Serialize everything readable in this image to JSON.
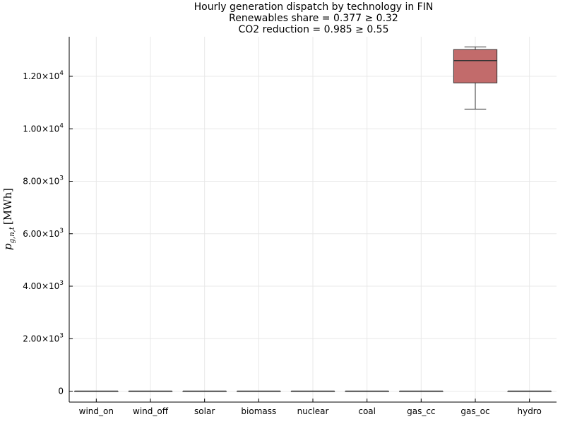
{
  "chart_data": {
    "type": "box",
    "title_lines": [
      "Hourly generation dispatch by technology in FIN",
      "Renewables share = 0.377 ≥ 0.32",
      "CO2 reduction = 0.985 ≥ 0.55"
    ],
    "ylabel": "p_{g,n,t} [MWh]",
    "ylabel_parts": {
      "p": "p",
      "sub": "g,n,t",
      "unit": "[MWh]"
    },
    "ylim": [
      -400,
      13500
    ],
    "yticks": [
      {
        "value": 0,
        "mant": "0",
        "exp": ""
      },
      {
        "value": 2000,
        "mant": "2.00×10",
        "exp": "3"
      },
      {
        "value": 4000,
        "mant": "4.00×10",
        "exp": "3"
      },
      {
        "value": 6000,
        "mant": "6.00×10",
        "exp": "3"
      },
      {
        "value": 8000,
        "mant": "8.00×10",
        "exp": "3"
      },
      {
        "value": 10000,
        "mant": "1.00×10",
        "exp": "4"
      },
      {
        "value": 12000,
        "mant": "1.20×10",
        "exp": "4"
      }
    ],
    "categories": [
      "wind_on",
      "wind_off",
      "solar",
      "biomass",
      "nuclear",
      "coal",
      "gas_cc",
      "gas_oc",
      "hydro"
    ],
    "boxes": [
      {
        "category": "wind_on",
        "min": 0,
        "q1": 0,
        "median": 0,
        "q3": 0,
        "max": 0
      },
      {
        "category": "wind_off",
        "min": 0,
        "q1": 0,
        "median": 0,
        "q3": 0,
        "max": 0
      },
      {
        "category": "solar",
        "min": 0,
        "q1": 0,
        "median": 0,
        "q3": 0,
        "max": 0
      },
      {
        "category": "biomass",
        "min": 0,
        "q1": 0,
        "median": 0,
        "q3": 0,
        "max": 0
      },
      {
        "category": "nuclear",
        "min": 0,
        "q1": 0,
        "median": 0,
        "q3": 0,
        "max": 0
      },
      {
        "category": "coal",
        "min": 0,
        "q1": 0,
        "median": 0,
        "q3": 0,
        "max": 0
      },
      {
        "category": "gas_cc",
        "min": 0,
        "q1": 0,
        "median": 0,
        "q3": 0,
        "max": 0
      },
      {
        "category": "gas_oc",
        "min": 10750,
        "q1": 11750,
        "median": 12600,
        "q3": 13020,
        "max": 13120
      },
      {
        "category": "hydro",
        "min": 0,
        "q1": 0,
        "median": 0,
        "q3": 0,
        "max": 0
      }
    ],
    "box_color": "#c26b6b",
    "box_edge_color": "#333333",
    "grid": true,
    "legend": "none"
  }
}
